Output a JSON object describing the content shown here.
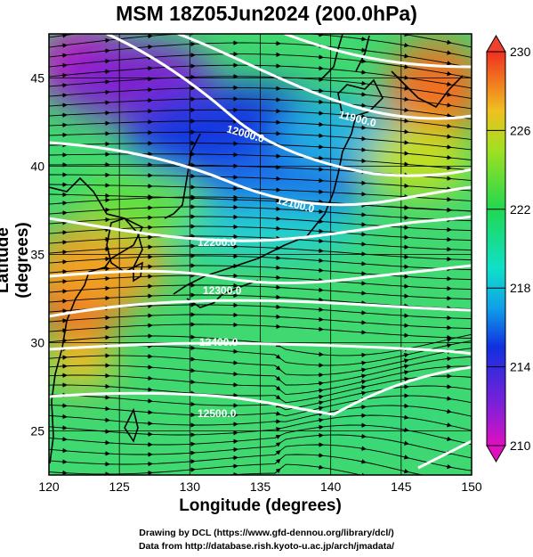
{
  "title": "MSM 18Z05Jun2024 (200.0hPa)",
  "axes": {
    "xlabel": "Longitude (degrees)",
    "ylabel": "Latitude  (degrees)",
    "x_ticks": [
      "120",
      "125",
      "130",
      "135",
      "140",
      "145",
      "150"
    ],
    "y_ticks": [
      "25",
      "30",
      "35",
      "40",
      "45"
    ],
    "xlim": [
      120,
      150
    ],
    "ylim": [
      22.5,
      47.5
    ]
  },
  "colorbar": {
    "ticks": [
      "210",
      "214",
      "218",
      "222",
      "226",
      "230"
    ],
    "range": [
      210,
      230
    ]
  },
  "contour_labels": [
    "12000.0",
    "11900.0",
    "12100.0",
    "12200.0",
    "12300.0",
    "12400.0",
    "12500.0"
  ],
  "credits": {
    "line1": "Drawing by DCL (https://www.gfd-dennou.org/library/dcl/)",
    "line2": "Data from http://database.rish.kyoto-u.ac.jp/arch/jmadata/"
  },
  "colors": {
    "low_temp": "#c000c0",
    "mid_temp": "#30e060",
    "high_temp": "#e83020"
  },
  "chart_data": {
    "type": "heatmap",
    "variable": "temperature at 200.0hPa with geopotential height contours and wind streamlines",
    "contours": [
      {
        "label": "11900.0",
        "approx_lon": 141,
        "approx_lat": 43.5
      },
      {
        "label": "12000.0",
        "approx_lon": 134,
        "approx_lat": 43
      },
      {
        "label": "12100.0",
        "approx_lon": 137.5,
        "approx_lat": 39
      },
      {
        "label": "12200.0",
        "approx_lon": 131.5,
        "approx_lat": 36
      },
      {
        "label": "12300.0",
        "approx_lon": 132,
        "approx_lat": 33
      },
      {
        "label": "12400.0",
        "approx_lon": 132,
        "approx_lat": 29.5
      },
      {
        "label": "12500.0",
        "approx_lon": 131,
        "approx_lat": 26
      }
    ]
  }
}
